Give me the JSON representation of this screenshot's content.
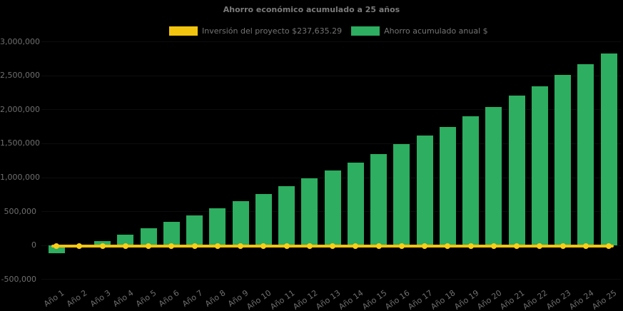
{
  "chart_title": "Ahorro económico acumulado a 25 años",
  "legend": {
    "investment_label": "Inversión del proyecto $237,635.29",
    "savings_label": "Ahorro acumulado anual $"
  },
  "colors": {
    "background": "#000000",
    "bar_green": "#2DAE60",
    "line_yellow": "#F2C40E",
    "marker_yellow": "#F7CE18",
    "text_gray": "#6F6F6F"
  },
  "chart_data": {
    "type": "bar",
    "title": "Ahorro económico acumulado a 25 años",
    "categories": [
      "Año 1",
      "Año 2",
      "Año 3",
      "Año 4",
      "Año 5",
      "Año 6",
      "Año 7",
      "Año 8",
      "Año 9",
      "Año 10",
      "Año 11",
      "Año 12",
      "Año 13",
      "Año 14",
      "Año 15",
      "Año 16",
      "Año 17",
      "Año 18",
      "Año 19",
      "Año 20",
      "Año 21",
      "Año 22",
      "Año 23",
      "Año 24",
      "Año 25"
    ],
    "series": [
      {
        "name": "Ahorro acumulado anual $",
        "type": "bar",
        "color": "#2DAE60",
        "values": [
          -115000,
          -5000,
          65000,
          160000,
          257000,
          352000,
          449000,
          548000,
          652000,
          757000,
          872000,
          985000,
          1105000,
          1226000,
          1350000,
          1497000,
          1620000,
          1750000,
          1905000,
          2042000,
          2203000,
          2340000,
          2512000,
          2667000,
          2830000
        ]
      },
      {
        "name": "Inversión del proyecto $237,635.29",
        "type": "line",
        "color": "#F2C40E",
        "marker_color": "#F7CE18",
        "values": [
          0,
          0,
          0,
          0,
          0,
          0,
          0,
          0,
          0,
          0,
          0,
          0,
          0,
          0,
          0,
          0,
          0,
          0,
          0,
          0,
          0,
          0,
          0,
          0,
          0
        ]
      }
    ],
    "ylim": [
      -500000,
      3000000
    ],
    "ytick_step": 500000,
    "ytick_labels": [
      "3,000,000",
      "2,500,000",
      "2,000,000",
      "1,500,000",
      "1,000,000",
      "500,000",
      "0",
      "-500,000"
    ],
    "xlabel": "",
    "ylabel": "",
    "grid": false,
    "legend_position": "top"
  }
}
